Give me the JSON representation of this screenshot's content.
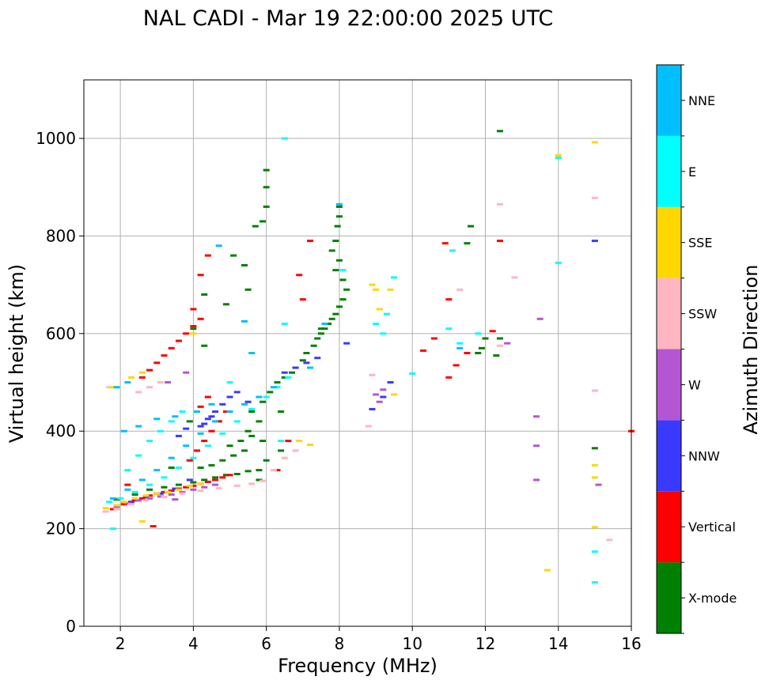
{
  "chart_data": {
    "type": "scatter",
    "title": "NAL CADI - Mar 19 22:00:00 2025 UTC",
    "xlabel": "Frequency (MHz)",
    "ylabel": "Virtual height (km)",
    "xlim": [
      1,
      16
    ],
    "ylim": [
      0,
      1120
    ],
    "xticks": [
      2,
      4,
      6,
      8,
      10,
      12,
      14,
      16
    ],
    "xtick_labels": [
      "2",
      "4",
      "6",
      "8",
      "10",
      "12",
      "14",
      "16"
    ],
    "yticks": [
      0,
      200,
      400,
      600,
      800,
      1000
    ],
    "ytick_labels": [
      "0",
      "200",
      "400",
      "600",
      "800",
      "1000"
    ],
    "grid": true,
    "colorbar": {
      "label": "Azimuth Direction",
      "categories": [
        {
          "name": "X-mode",
          "color": "#008000"
        },
        {
          "name": "Vertical",
          "color": "#ff0000"
        },
        {
          "name": "NNW",
          "color": "#3a3aff"
        },
        {
          "name": "W",
          "color": "#b456d2"
        },
        {
          "name": "SSW",
          "color": "#ffb6c1"
        },
        {
          "name": "SSE",
          "color": "#ffd700"
        },
        {
          "name": "E",
          "color": "#00ffff"
        },
        {
          "name": "NNE",
          "color": "#00bfff"
        }
      ]
    },
    "series": [
      {
        "name": "X-mode",
        "points": [
          [
            1.9,
            260
          ],
          [
            2.4,
            270
          ],
          [
            2.8,
            280
          ],
          [
            3.2,
            285
          ],
          [
            3.6,
            290
          ],
          [
            4.0,
            295
          ],
          [
            4.3,
            300
          ],
          [
            4.6,
            305
          ],
          [
            4.9,
            310
          ],
          [
            5.2,
            312
          ],
          [
            5.5,
            318
          ],
          [
            4.2,
            325
          ],
          [
            4.5,
            330
          ],
          [
            4.8,
            340
          ],
          [
            5.1,
            350
          ],
          [
            5.4,
            360
          ],
          [
            5.0,
            370
          ],
          [
            5.3,
            380
          ],
          [
            5.6,
            390
          ],
          [
            5.5,
            400
          ],
          [
            5.8,
            420
          ],
          [
            5.6,
            440
          ],
          [
            5.9,
            460
          ],
          [
            6.1,
            480
          ],
          [
            6.3,
            500
          ],
          [
            6.5,
            510
          ],
          [
            6.7,
            520
          ],
          [
            6.8,
            530
          ],
          [
            7.0,
            545
          ],
          [
            7.1,
            560
          ],
          [
            7.3,
            575
          ],
          [
            7.4,
            590
          ],
          [
            7.5,
            600
          ],
          [
            7.6,
            610
          ],
          [
            7.7,
            620
          ],
          [
            7.8,
            630
          ],
          [
            7.9,
            640
          ],
          [
            8.0,
            655
          ],
          [
            8.1,
            670
          ],
          [
            8.2,
            690
          ],
          [
            8.1,
            710
          ],
          [
            7.9,
            730
          ],
          [
            8.0,
            750
          ],
          [
            7.8,
            770
          ],
          [
            7.9,
            790
          ],
          [
            7.95,
            820
          ],
          [
            8.0,
            840
          ],
          [
            8.0,
            860
          ],
          [
            5.7,
            820
          ],
          [
            5.9,
            830
          ],
          [
            6.0,
            860
          ],
          [
            6.0,
            900
          ],
          [
            6.0,
            935
          ],
          [
            5.5,
            690
          ],
          [
            5.4,
            740
          ],
          [
            5.1,
            760
          ],
          [
            4.9,
            660
          ],
          [
            4.3,
            575
          ],
          [
            3.9,
            420
          ],
          [
            4.7,
            420
          ],
          [
            6.4,
            440
          ],
          [
            7.5,
            610
          ],
          [
            5.9,
            380
          ],
          [
            6.4,
            360
          ],
          [
            6.0,
            340
          ],
          [
            5.8,
            320
          ],
          [
            11.8,
            560
          ],
          [
            11.9,
            570
          ],
          [
            12.3,
            555
          ],
          [
            12.4,
            590
          ],
          [
            12.4,
            1015
          ],
          [
            11.6,
            820
          ],
          [
            11.5,
            785
          ],
          [
            12.0,
            590
          ],
          [
            15.0,
            365
          ],
          [
            4.0,
            610
          ],
          [
            4.3,
            680
          ],
          [
            5.8,
            300
          ],
          [
            3.4,
            325
          ]
        ]
      },
      {
        "name": "Vertical",
        "points": [
          [
            1.8,
            240
          ],
          [
            2.1,
            250
          ],
          [
            2.4,
            258
          ],
          [
            2.6,
            262
          ],
          [
            2.8,
            268
          ],
          [
            3.0,
            272
          ],
          [
            3.2,
            275
          ],
          [
            3.4,
            278
          ],
          [
            3.6,
            282
          ],
          [
            3.8,
            285
          ],
          [
            4.0,
            288
          ],
          [
            4.2,
            292
          ],
          [
            4.4,
            296
          ],
          [
            4.6,
            300
          ],
          [
            4.8,
            305
          ],
          [
            5.0,
            310
          ],
          [
            3.9,
            340
          ],
          [
            4.1,
            360
          ],
          [
            4.3,
            380
          ],
          [
            4.5,
            400
          ],
          [
            4.7,
            420
          ],
          [
            4.9,
            440
          ],
          [
            4.2,
            450
          ],
          [
            4.4,
            470
          ],
          [
            2.6,
            510
          ],
          [
            2.8,
            525
          ],
          [
            3.0,
            540
          ],
          [
            3.2,
            555
          ],
          [
            3.4,
            570
          ],
          [
            3.6,
            585
          ],
          [
            3.8,
            600
          ],
          [
            4.0,
            615
          ],
          [
            4.2,
            630
          ],
          [
            4.0,
            650
          ],
          [
            4.2,
            720
          ],
          [
            4.4,
            760
          ],
          [
            6.3,
            320
          ],
          [
            6.6,
            380
          ],
          [
            6.9,
            720
          ],
          [
            7.2,
            790
          ],
          [
            7.0,
            670
          ],
          [
            10.6,
            590
          ],
          [
            10.9,
            785
          ],
          [
            11.0,
            670
          ],
          [
            11.2,
            535
          ],
          [
            11.5,
            560
          ],
          [
            12.2,
            605
          ],
          [
            12.4,
            790
          ],
          [
            11.0,
            510
          ],
          [
            10.3,
            565
          ],
          [
            16.0,
            400
          ],
          [
            2.9,
            205
          ],
          [
            2.2,
            290
          ]
        ]
      },
      {
        "name": "NNW",
        "points": [
          [
            2.3,
            255
          ],
          [
            2.7,
            265
          ],
          [
            3.1,
            272
          ],
          [
            3.5,
            282
          ],
          [
            3.9,
            300
          ],
          [
            4.2,
            410
          ],
          [
            4.4,
            425
          ],
          [
            4.6,
            440
          ],
          [
            4.8,
            455
          ],
          [
            5.0,
            470
          ],
          [
            5.2,
            480
          ],
          [
            4.3,
            415
          ],
          [
            4.5,
            430
          ],
          [
            5.5,
            460
          ],
          [
            6.5,
            520
          ],
          [
            6.8,
            530
          ],
          [
            7.1,
            540
          ],
          [
            7.4,
            550
          ],
          [
            8.2,
            580
          ],
          [
            8.9,
            445
          ],
          [
            9.2,
            470
          ],
          [
            9.4,
            500
          ],
          [
            15.0,
            790
          ],
          [
            3.6,
            390
          ],
          [
            3.8,
            405
          ]
        ]
      },
      {
        "name": "W",
        "points": [
          [
            1.9,
            245
          ],
          [
            2.2,
            252
          ],
          [
            2.5,
            258
          ],
          [
            2.8,
            262
          ],
          [
            3.1,
            266
          ],
          [
            3.4,
            270
          ],
          [
            3.7,
            275
          ],
          [
            4.0,
            280
          ],
          [
            4.3,
            285
          ],
          [
            4.6,
            290
          ],
          [
            3.3,
            500
          ],
          [
            3.8,
            520
          ],
          [
            9.1,
            460
          ],
          [
            9.0,
            475
          ],
          [
            9.2,
            485
          ],
          [
            13.4,
            300
          ],
          [
            13.4,
            430
          ],
          [
            13.4,
            370
          ],
          [
            13.5,
            630
          ],
          [
            15.1,
            290
          ],
          [
            12.6,
            580
          ],
          [
            3.5,
            260
          ]
        ]
      },
      {
        "name": "SSW",
        "points": [
          [
            1.6,
            235
          ],
          [
            1.9,
            240
          ],
          [
            2.3,
            250
          ],
          [
            2.7,
            258
          ],
          [
            3.2,
            265
          ],
          [
            3.7,
            272
          ],
          [
            4.2,
            278
          ],
          [
            4.7,
            283
          ],
          [
            5.2,
            288
          ],
          [
            5.6,
            292
          ],
          [
            5.9,
            298
          ],
          [
            6.2,
            320
          ],
          [
            6.5,
            345
          ],
          [
            6.8,
            360
          ],
          [
            2.5,
            480
          ],
          [
            2.8,
            490
          ],
          [
            3.1,
            500
          ],
          [
            8.8,
            410
          ],
          [
            8.9,
            515
          ],
          [
            11.3,
            690
          ],
          [
            12.4,
            575
          ],
          [
            12.4,
            865
          ],
          [
            12.8,
            715
          ],
          [
            15.0,
            483
          ],
          [
            15.0,
            878
          ],
          [
            15.4,
            177
          ],
          [
            1.7,
            490
          ]
        ]
      },
      {
        "name": "SSE",
        "points": [
          [
            1.6,
            242
          ],
          [
            1.9,
            248
          ],
          [
            2.1,
            255
          ],
          [
            2.4,
            262
          ],
          [
            2.7,
            268
          ],
          [
            3.0,
            272
          ],
          [
            3.3,
            275
          ],
          [
            3.6,
            280
          ],
          [
            3.9,
            288
          ],
          [
            4.2,
            292
          ],
          [
            2.3,
            510
          ],
          [
            2.6,
            520
          ],
          [
            1.8,
            490
          ],
          [
            4.0,
            600
          ],
          [
            6.9,
            380
          ],
          [
            7.2,
            372
          ],
          [
            8.9,
            700
          ],
          [
            9.0,
            690
          ],
          [
            9.1,
            650
          ],
          [
            9.4,
            690
          ],
          [
            9.5,
            475
          ],
          [
            13.7,
            115
          ],
          [
            14.0,
            965
          ],
          [
            15.0,
            330
          ],
          [
            15.0,
            305
          ],
          [
            15.0,
            203
          ],
          [
            15.0,
            992
          ],
          [
            2.6,
            215
          ]
        ]
      },
      {
        "name": "E",
        "points": [
          [
            1.7,
            255
          ],
          [
            2.0,
            262
          ],
          [
            2.4,
            275
          ],
          [
            2.8,
            290
          ],
          [
            3.2,
            305
          ],
          [
            3.6,
            325
          ],
          [
            4.0,
            345
          ],
          [
            4.4,
            370
          ],
          [
            4.8,
            395
          ],
          [
            5.2,
            420
          ],
          [
            5.6,
            445
          ],
          [
            6.0,
            470
          ],
          [
            6.3,
            490
          ],
          [
            6.6,
            510
          ],
          [
            2.2,
            320
          ],
          [
            2.5,
            350
          ],
          [
            2.8,
            380
          ],
          [
            3.1,
            400
          ],
          [
            3.4,
            420
          ],
          [
            3.7,
            440
          ],
          [
            5.0,
            500
          ],
          [
            6.5,
            620
          ],
          [
            6.5,
            1000
          ],
          [
            6.4,
            380
          ],
          [
            8.1,
            730
          ],
          [
            9.0,
            620
          ],
          [
            9.2,
            600
          ],
          [
            9.3,
            640
          ],
          [
            9.5,
            715
          ],
          [
            10.0,
            518
          ],
          [
            11.0,
            610
          ],
          [
            11.1,
            770
          ],
          [
            11.3,
            580
          ],
          [
            11.8,
            600
          ],
          [
            14.0,
            745
          ],
          [
            14.0,
            960
          ],
          [
            15.0,
            90
          ],
          [
            15.0,
            153
          ],
          [
            1.8,
            200
          ]
        ]
      },
      {
        "name": "NNE",
        "points": [
          [
            1.8,
            262
          ],
          [
            2.2,
            280
          ],
          [
            2.6,
            300
          ],
          [
            3.0,
            320
          ],
          [
            3.4,
            345
          ],
          [
            3.8,
            370
          ],
          [
            4.2,
            395
          ],
          [
            4.6,
            420
          ],
          [
            5.0,
            440
          ],
          [
            5.4,
            455
          ],
          [
            5.8,
            470
          ],
          [
            6.2,
            490
          ],
          [
            2.1,
            400
          ],
          [
            2.5,
            410
          ],
          [
            3.0,
            425
          ],
          [
            3.5,
            430
          ],
          [
            4.1,
            440
          ],
          [
            4.5,
            455
          ],
          [
            4.7,
            780
          ],
          [
            5.4,
            625
          ],
          [
            5.6,
            560
          ],
          [
            7.2,
            530
          ],
          [
            7.6,
            620
          ],
          [
            8.0,
            865
          ],
          [
            11.3,
            570
          ],
          [
            2.2,
            500
          ],
          [
            1.9,
            490
          ]
        ]
      }
    ]
  }
}
